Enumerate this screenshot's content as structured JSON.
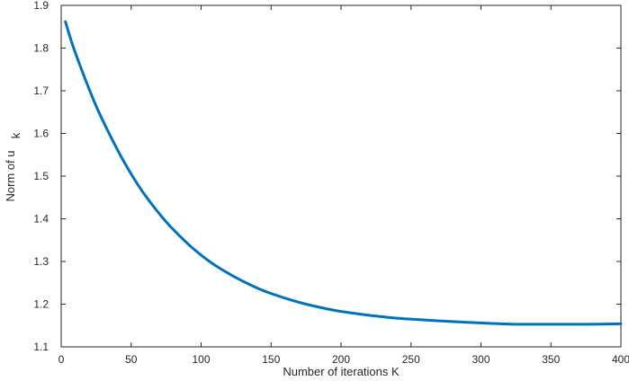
{
  "chart_data": {
    "type": "line",
    "title": "",
    "xlabel": "Number of iterations K",
    "ylabel": "Norm of u",
    "ylabel_subscript": "k",
    "xlim": [
      0,
      400
    ],
    "ylim": [
      1.1,
      1.9
    ],
    "xticks": [
      0,
      50,
      100,
      150,
      200,
      250,
      300,
      350,
      400
    ],
    "yticks": [
      1.1,
      1.2,
      1.3,
      1.4,
      1.5,
      1.6,
      1.7,
      1.8,
      1.9
    ],
    "xtick_labels": [
      "0",
      "50",
      "100",
      "150",
      "200",
      "250",
      "300",
      "350",
      "400"
    ],
    "ytick_labels": [
      "1.1",
      "1.2",
      "1.3",
      "1.4",
      "1.5",
      "1.6",
      "1.7",
      "1.8",
      "1.9"
    ],
    "grid": false,
    "box": true,
    "series": [
      {
        "color": "#0072bd",
        "x": [
          3,
          10,
          25,
          40,
          50,
          60,
          75,
          90,
          100,
          110,
          125,
          140,
          150,
          165,
          175,
          190,
          200,
          215,
          225,
          240,
          250,
          275,
          300,
          325,
          350,
          375,
          400
        ],
        "y": [
          1.862,
          1.79,
          1.664,
          1.563,
          1.505,
          1.455,
          1.393,
          1.343,
          1.315,
          1.291,
          1.262,
          1.238,
          1.225,
          1.209,
          1.2,
          1.189,
          1.183,
          1.176,
          1.172,
          1.167,
          1.165,
          1.16,
          1.156,
          1.153,
          1.153,
          1.153,
          1.154
        ]
      }
    ]
  }
}
